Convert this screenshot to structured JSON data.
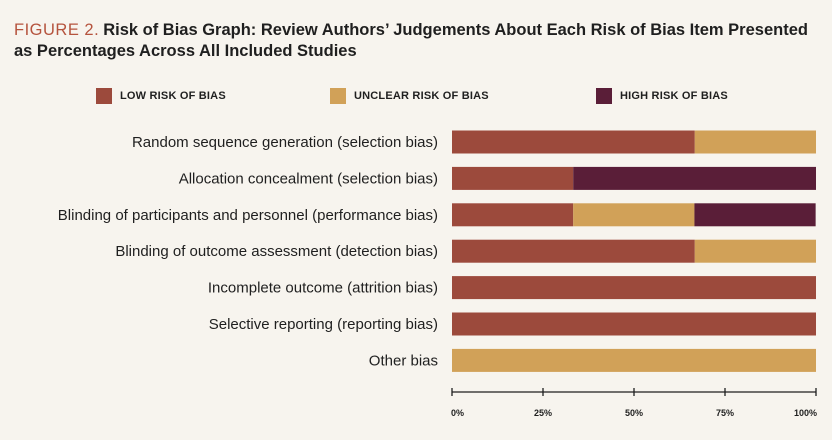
{
  "figure": {
    "label": "FIGURE 2.",
    "title": "Risk of Bias Graph: Review Authors’ Judgements About Each Risk of Bias Item Presented as Percentages Across All Included Studies"
  },
  "legend": [
    {
      "name": "LOW RISK OF BIAS",
      "color": "#9c4a3c"
    },
    {
      "name": "UNCLEAR RISK OF BIAS",
      "color": "#d1a158"
    },
    {
      "name": "HIGH RISK OF BIAS",
      "color": "#5a1e38"
    }
  ],
  "chart_data": {
    "type": "bar",
    "orientation": "horizontal",
    "stacked": true,
    "categories": [
      "Random sequence generation (selection bias)",
      "Allocation concealment (selection bias)",
      "Blinding of participants and personnel (performance bias)",
      "Blinding of outcome assessment (detection bias)",
      "Incomplete outcome (attrition bias)",
      "Selective reporting (reporting bias)",
      "Other bias"
    ],
    "series": [
      {
        "name": "LOW RISK OF BIAS",
        "color": "#9c4a3c",
        "values": [
          66.7,
          33.3,
          33.3,
          66.7,
          100,
          100,
          0
        ]
      },
      {
        "name": "UNCLEAR RISK OF BIAS",
        "color": "#d1a158",
        "values": [
          33.3,
          0,
          33.3,
          33.3,
          0,
          0,
          100
        ]
      },
      {
        "name": "HIGH RISK OF BIAS",
        "color": "#5a1e38",
        "values": [
          0,
          66.7,
          33.3,
          0,
          0,
          0,
          0
        ]
      }
    ],
    "xlim": [
      0,
      100
    ],
    "xticks": [
      "0%",
      "25%",
      "50%",
      "75%",
      "100%"
    ],
    "grid": false,
    "legend_position": "top"
  }
}
